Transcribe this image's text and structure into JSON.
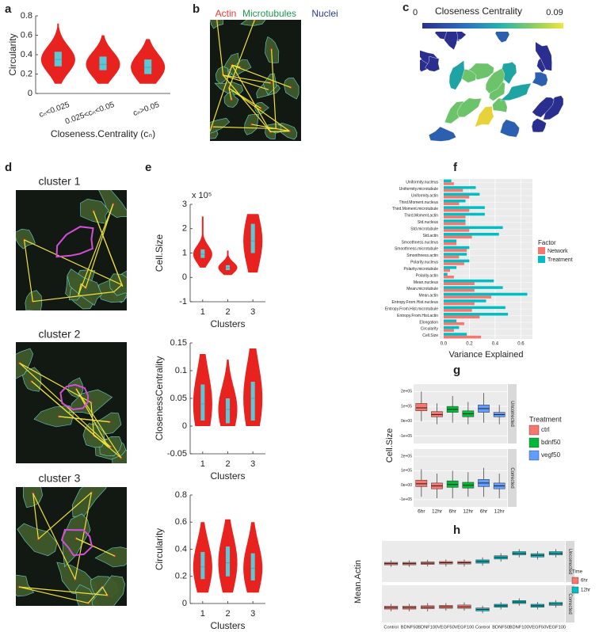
{
  "panel_labels": [
    "a",
    "b",
    "c",
    "d",
    "e",
    "f",
    "g",
    "h"
  ],
  "image_b": {
    "labels": [
      {
        "text": "Actin",
        "color": "#e8392f"
      },
      {
        "text": "Microtubules",
        "color": "#1a9a4a"
      },
      {
        "text": "Nuclei",
        "color": "#2b3a9a"
      }
    ]
  },
  "image_c": {
    "title": "Closeness Centrality",
    "colorbar_range": [
      0,
      0.09
    ]
  },
  "image_d": {
    "titles": [
      "cluster 1",
      "cluster 2",
      "cluster 3"
    ]
  },
  "chart_data": [
    {
      "type": "violin",
      "ylabel": "Circularity",
      "xlabel": "Closeness.Centrality (cₙ)",
      "categories": [
        "cₙ<0.025",
        "0.025<cₙ<0.05",
        "cₙ>0.05"
      ],
      "ylim": [
        0,
        0.8
      ],
      "yticks": [
        0,
        0.2,
        0.4,
        0.6,
        0.8
      ],
      "color": "#e8231f",
      "box_color": "#5bc8d6",
      "stats": {
        "min": [
          0.1,
          0.1,
          0.1
        ],
        "q1": [
          0.28,
          0.24,
          0.2
        ],
        "median": [
          0.35,
          0.3,
          0.27
        ],
        "q3": [
          0.43,
          0.38,
          0.35
        ],
        "max": [
          0.72,
          0.6,
          0.56
        ]
      }
    },
    {
      "type": "violin",
      "ylabel": "Cell.Size",
      "xlabel": "Clusters",
      "multiplier": "x 10⁵",
      "categories": [
        "1",
        "2",
        "3"
      ],
      "ylim": [
        -1,
        3
      ],
      "yticks": [
        -1,
        0,
        1,
        2,
        3
      ],
      "color": "#e8231f",
      "box_color": "#5bc8d6",
      "stats": {
        "min": [
          0.4,
          0.1,
          0.2
        ],
        "q1": [
          0.8,
          0.3,
          1.0
        ],
        "median": [
          0.95,
          0.4,
          1.5
        ],
        "q3": [
          1.15,
          0.5,
          2.2
        ],
        "max": [
          2.5,
          1.1,
          2.6
        ]
      }
    },
    {
      "type": "violin",
      "ylabel": "ClosenessCentrality",
      "xlabel": "Clusters",
      "categories": [
        "1",
        "2",
        "3"
      ],
      "ylim": [
        -0.05,
        0.15
      ],
      "yticks": [
        -0.05,
        0,
        0.05,
        0.1,
        0.15
      ],
      "color": "#e8231f",
      "box_color": "#5bc8d6",
      "stats": {
        "min": [
          0,
          0,
          0
        ],
        "q1": [
          0.01,
          0.005,
          0.01
        ],
        "median": [
          0.04,
          0.03,
          0.05
        ],
        "q3": [
          0.075,
          0.05,
          0.08
        ],
        "max": [
          0.13,
          0.12,
          0.14
        ]
      }
    },
    {
      "type": "violin",
      "ylabel": "Circularity",
      "xlabel": "Clusters",
      "categories": [
        "1",
        "2",
        "3"
      ],
      "ylim": [
        0,
        0.8
      ],
      "yticks": [
        0,
        0.2,
        0.4,
        0.6,
        0.8
      ],
      "color": "#e8231f",
      "box_color": "#5bc8d6",
      "stats": {
        "min": [
          0.08,
          0.08,
          0.08
        ],
        "q1": [
          0.18,
          0.2,
          0.17
        ],
        "median": [
          0.27,
          0.3,
          0.26
        ],
        "q3": [
          0.38,
          0.42,
          0.37
        ],
        "max": [
          0.6,
          0.62,
          0.6
        ]
      }
    },
    {
      "type": "hbar",
      "xlabel": "Variance Explained",
      "legend_title": "Factor",
      "grid": true,
      "categories": [
        "Uniformity.nucleus",
        "Uniformity.microtubule",
        "Uniformity.actin",
        "Third.Moment.nucleus",
        "Third.Moment.microtubule",
        "Third.Moment.actin",
        "Std.nucleus",
        "Std.microtubule",
        "Std.actin",
        "Smoothness.nucleus",
        "Smoothness.microtubule",
        "Smoothness.actin",
        "Polarity.nucleus",
        "Polarity.microtubule",
        "Polarity.actin",
        "Mean.nucleus",
        "Mean.microtubule",
        "Mean.actin",
        "Entropy.From.Hist.nucleus",
        "Entropy.From.Hist.microtubule",
        "Entropy.From.Hist.actin",
        "Elongation",
        "Circularity",
        "Cell.Size"
      ],
      "series": [
        {
          "name": "Network",
          "color": "#f8766d",
          "values": [
            0.08,
            0.15,
            0.2,
            0.12,
            0.2,
            0.17,
            0.17,
            0.2,
            0.22,
            0.1,
            0.18,
            0.12,
            0.16,
            0.05,
            0.08,
            0.24,
            0.24,
            0.37,
            0.24,
            0.22,
            0.28,
            0.16,
            0.08,
            0.29
          ]
        },
        {
          "name": "Treatment",
          "color": "#00bfc4",
          "values": [
            0.06,
            0.25,
            0.28,
            0.17,
            0.32,
            0.32,
            0.17,
            0.46,
            0.43,
            0.1,
            0.2,
            0.18,
            0.2,
            0.1,
            0.03,
            0.39,
            0.46,
            0.65,
            0.33,
            0.48,
            0.5,
            0.1,
            0.12,
            0.18
          ]
        }
      ],
      "xlim": [
        -0.03,
        0.69
      ],
      "xticks": [
        {
          "value": 0,
          "label": "0.0"
        },
        0.2,
        0.4,
        0.6
      ]
    },
    {
      "type": "facet_box",
      "ylabel": "Cell.Size",
      "legend_title": "Treatment",
      "facets": [
        "Uncorrected",
        "Corrected"
      ],
      "categories": [
        "6hr",
        "12hr"
      ],
      "ylim": [
        -150000,
        250000
      ],
      "yticks": [
        {
          "value": -100000,
          "label": "-1e+05"
        },
        {
          "value": 0,
          "label": "0e+00"
        },
        {
          "value": 100000,
          "label": "1e+05"
        },
        {
          "value": 200000,
          "label": "2e+05"
        }
      ],
      "series": [
        {
          "name": "ctrl",
          "color": "#f8766d",
          "boxes": [
            [
              [
                0,
                70000,
                90000,
                120000,
                200000
              ],
              [
                -20000,
                30000,
                45000,
                65000,
                120000
              ]
            ],
            [
              [
                -80000,
                -10000,
                10000,
                35000,
                110000
              ],
              [
                -90000,
                -25000,
                -5000,
                15000,
                80000
              ]
            ]
          ]
        },
        {
          "name": "bdnf50",
          "color": "#00ba38",
          "boxes": [
            [
              [
                -10000,
                60000,
                80000,
                100000,
                170000
              ],
              [
                -20000,
                30000,
                50000,
                70000,
                130000
              ]
            ],
            [
              [
                -90000,
                -15000,
                5000,
                30000,
                100000
              ],
              [
                -80000,
                -20000,
                0,
                20000,
                90000
              ]
            ]
          ]
        },
        {
          "name": "vegf50",
          "color": "#619cff",
          "boxes": [
            [
              [
                -10000,
                60000,
                85000,
                110000,
                190000
              ],
              [
                -20000,
                30000,
                45000,
                60000,
                110000
              ]
            ],
            [
              [
                -80000,
                -10000,
                15000,
                40000,
                120000
              ],
              [
                -90000,
                -25000,
                -5000,
                15000,
                80000
              ]
            ]
          ]
        }
      ]
    },
    {
      "type": "facet_box",
      "ylabel": "Mean.Actin",
      "legend_title": "Time",
      "facets": [
        "Uncorrected",
        "Corrected"
      ],
      "categories": [
        "Control",
        "BDNF50",
        "BDNF100",
        "VEGF50",
        "VEGF100"
      ],
      "ylim": [
        0,
        1
      ],
      "series": [
        {
          "name": "6hr",
          "color": "#f8766d",
          "boxes": [
            [
              [
                0.37,
                0.42,
                0.45,
                0.48,
                0.53
              ],
              [
                0.37,
                0.42,
                0.45,
                0.48,
                0.53
              ],
              [
                0.38,
                0.43,
                0.46,
                0.49,
                0.54
              ],
              [
                0.38,
                0.44,
                0.47,
                0.5,
                0.55
              ],
              [
                0.38,
                0.44,
                0.47,
                0.5,
                0.55
              ]
            ],
            [
              [
                0.3,
                0.36,
                0.4,
                0.44,
                0.5
              ],
              [
                0.3,
                0.36,
                0.4,
                0.44,
                0.5
              ],
              [
                0.3,
                0.37,
                0.41,
                0.45,
                0.52
              ],
              [
                0.32,
                0.38,
                0.42,
                0.46,
                0.52
              ],
              [
                0.32,
                0.38,
                0.42,
                0.47,
                0.54
              ]
            ]
          ]
        },
        {
          "name": "12hr",
          "color": "#00bfc4",
          "boxes": [
            [
              [
                0.4,
                0.46,
                0.5,
                0.54,
                0.6
              ],
              [
                0.5,
                0.56,
                0.6,
                0.64,
                0.7
              ],
              [
                0.6,
                0.66,
                0.7,
                0.74,
                0.8
              ],
              [
                0.55,
                0.61,
                0.65,
                0.69,
                0.75
              ],
              [
                0.6,
                0.66,
                0.7,
                0.74,
                0.8
              ]
            ],
            [
              [
                0.25,
                0.31,
                0.35,
                0.39,
                0.45
              ],
              [
                0.35,
                0.41,
                0.45,
                0.49,
                0.55
              ],
              [
                0.45,
                0.51,
                0.55,
                0.59,
                0.65
              ],
              [
                0.35,
                0.41,
                0.45,
                0.49,
                0.55
              ],
              [
                0.4,
                0.46,
                0.5,
                0.54,
                0.6
              ]
            ]
          ]
        }
      ]
    }
  ]
}
